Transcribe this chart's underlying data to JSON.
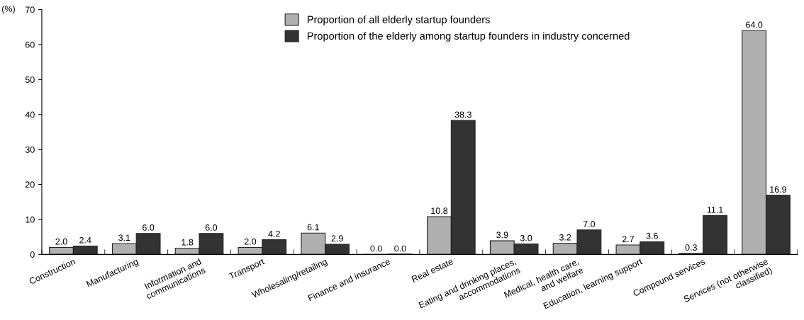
{
  "chart_data": {
    "type": "bar",
    "ylabel": "(%)",
    "categories": [
      "Construction",
      "Manufacturing",
      "Information and\ncommunications",
      "Transport",
      "Wholesaling/retailing",
      "Finance and insurance",
      "Real estate",
      "Eating and drinking places,\naccommodations",
      "Medical, health care,\nand welfare",
      "Education, learning support",
      "Compound services",
      "Services (not otherwise\nclassified)"
    ],
    "series": [
      {
        "name": "Proportion of all elderly startup founders",
        "color": "#b0b0b0",
        "values": [
          2.0,
          3.1,
          1.8,
          2.0,
          6.1,
          0.0,
          10.8,
          3.9,
          3.2,
          2.7,
          0.3,
          64.0
        ],
        "value_labels": [
          "2.0",
          "3.1",
          "1.8",
          "2.0",
          "6.1",
          "0.0",
          "10.8",
          "3.9",
          "3.2",
          "2.7",
          "0.3",
          "64.0"
        ]
      },
      {
        "name": "Proportion of the elderly among startup founders in industry concerned",
        "color": "#333333",
        "values": [
          2.4,
          6.0,
          6.0,
          4.2,
          2.9,
          0.0,
          38.3,
          3.0,
          7.0,
          3.6,
          11.1,
          16.9
        ],
        "value_labels": [
          "2.4",
          "6.0",
          "6.0",
          "4.2",
          "2.9",
          "0.0",
          "38.3",
          "3.0",
          "7.0",
          "3.6",
          "11.1",
          "16.9"
        ]
      }
    ],
    "ylim": [
      0,
      70
    ],
    "yticks": [
      0,
      10,
      20,
      30,
      40,
      50,
      60,
      70
    ],
    "grid": false,
    "legend": "top"
  }
}
